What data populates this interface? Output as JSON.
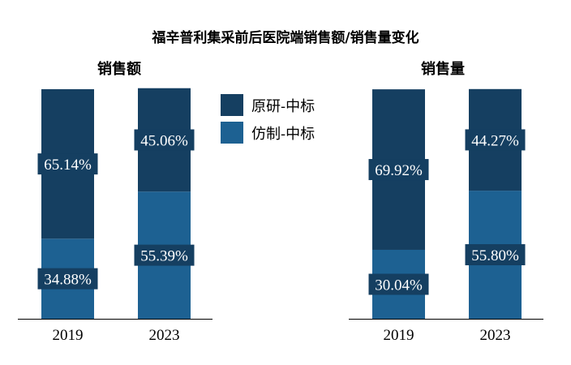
{
  "title": "福辛普利集采前后医院端销售额/销售量变化",
  "legend": [
    {
      "label": "原研-中标",
      "color": "#153f61"
    },
    {
      "label": "仿制-中标",
      "color": "#1d6192"
    }
  ],
  "chart_data": [
    {
      "type": "bar",
      "stacked": true,
      "title": "销售额",
      "categories": [
        "2019",
        "2023"
      ],
      "series": [
        {
          "name": "仿制-中标",
          "values": [
            34.88,
            55.39
          ],
          "labels": [
            "34.88%",
            "55.39%"
          ]
        },
        {
          "name": "原研-中标",
          "values": [
            65.14,
            45.06
          ],
          "labels": [
            "65.14%",
            "45.06%"
          ]
        }
      ],
      "ylim": [
        0,
        100
      ],
      "grid": false
    },
    {
      "type": "bar",
      "stacked": true,
      "title": "销售量",
      "categories": [
        "2019",
        "2023"
      ],
      "series": [
        {
          "name": "仿制-中标",
          "values": [
            30.04,
            55.8
          ],
          "labels": [
            "30.04%",
            "55.80%"
          ]
        },
        {
          "name": "原研-中标",
          "values": [
            69.92,
            44.27
          ],
          "labels": [
            "69.92%",
            "44.27%"
          ]
        }
      ],
      "ylim": [
        0,
        100
      ],
      "grid": false
    }
  ]
}
